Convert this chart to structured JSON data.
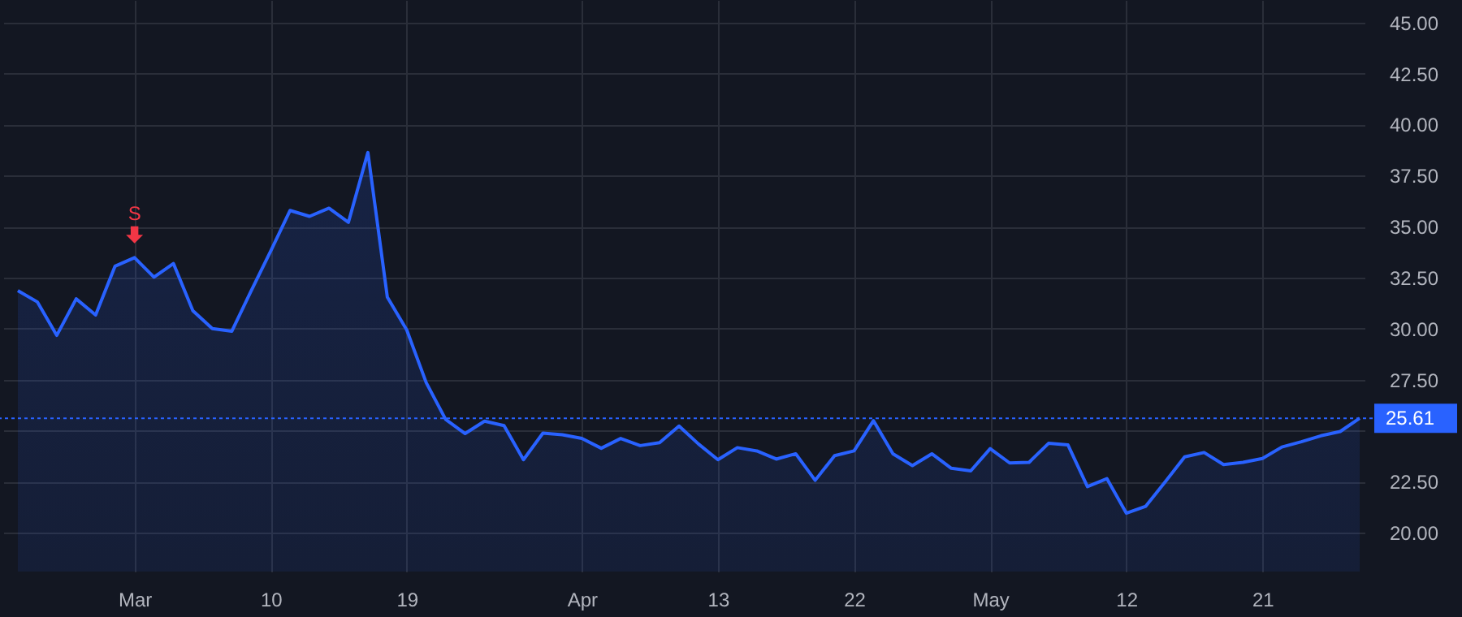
{
  "chart_data": {
    "type": "area",
    "categories": [
      null,
      null,
      null,
      null,
      null,
      null,
      "Mar",
      null,
      null,
      null,
      null,
      null,
      null,
      "10",
      null,
      null,
      null,
      null,
      null,
      null,
      "19",
      null,
      null,
      null,
      null,
      null,
      null,
      null,
      null,
      "Apr",
      null,
      null,
      null,
      null,
      null,
      null,
      "13",
      null,
      null,
      null,
      null,
      null,
      null,
      "22",
      null,
      null,
      null,
      null,
      null,
      null,
      "May",
      null,
      null,
      null,
      null,
      null,
      null,
      "12",
      null,
      null,
      null,
      null,
      null,
      null,
      "21",
      null,
      null,
      null,
      null,
      null
    ],
    "series": [
      {
        "color": "#2962ff",
        "values": [
          31.86,
          31.31,
          29.67,
          31.46,
          30.67,
          33.06,
          33.48,
          32.52,
          33.19,
          30.88,
          30.0,
          29.87,
          31.86,
          33.8,
          35.79,
          35.5,
          35.9,
          35.21,
          38.63,
          31.54,
          29.93,
          27.35,
          25.55,
          24.86,
          25.47,
          25.25,
          23.58,
          24.88,
          24.8,
          24.62,
          24.14,
          24.62,
          24.27,
          24.41,
          25.23,
          24.35,
          23.58,
          24.17,
          24.01,
          23.61,
          23.87,
          22.57,
          23.78,
          24.01,
          25.49,
          23.87,
          23.29,
          23.87,
          23.16,
          23.03,
          24.12,
          23.42,
          23.45,
          24.38,
          24.3,
          22.26,
          22.65,
          20.96,
          21.3,
          22.49,
          23.72,
          23.93,
          23.34,
          23.45,
          23.64,
          24.2,
          24.46,
          24.75,
          24.96,
          25.61
        ]
      }
    ],
    "ylim": [
      18.1,
      46.1
    ],
    "yticks": [
      {
        "value": 20,
        "label": "20.00"
      },
      {
        "value": 22.5,
        "label": "22.50"
      },
      {
        "value": 25,
        "label": null
      },
      {
        "value": 27.5,
        "label": "27.50"
      },
      {
        "value": 30,
        "label": "30.00"
      },
      {
        "value": 32.5,
        "label": "32.50"
      },
      {
        "value": 35,
        "label": "35.00"
      },
      {
        "value": 37.5,
        "label": "37.50"
      },
      {
        "value": 40,
        "label": "40.00"
      },
      {
        "value": 42.5,
        "label": "42.50"
      },
      {
        "value": 45,
        "label": "45.00"
      }
    ],
    "grid": true,
    "ref_lines": [
      {
        "axis": "y",
        "value": 25.61,
        "label": "25.61",
        "color": "#2962ff",
        "line_style": "dotted"
      }
    ],
    "annotations": [
      {
        "text": "S",
        "x": "Mar",
        "y": 33.48
      }
    ]
  }
}
